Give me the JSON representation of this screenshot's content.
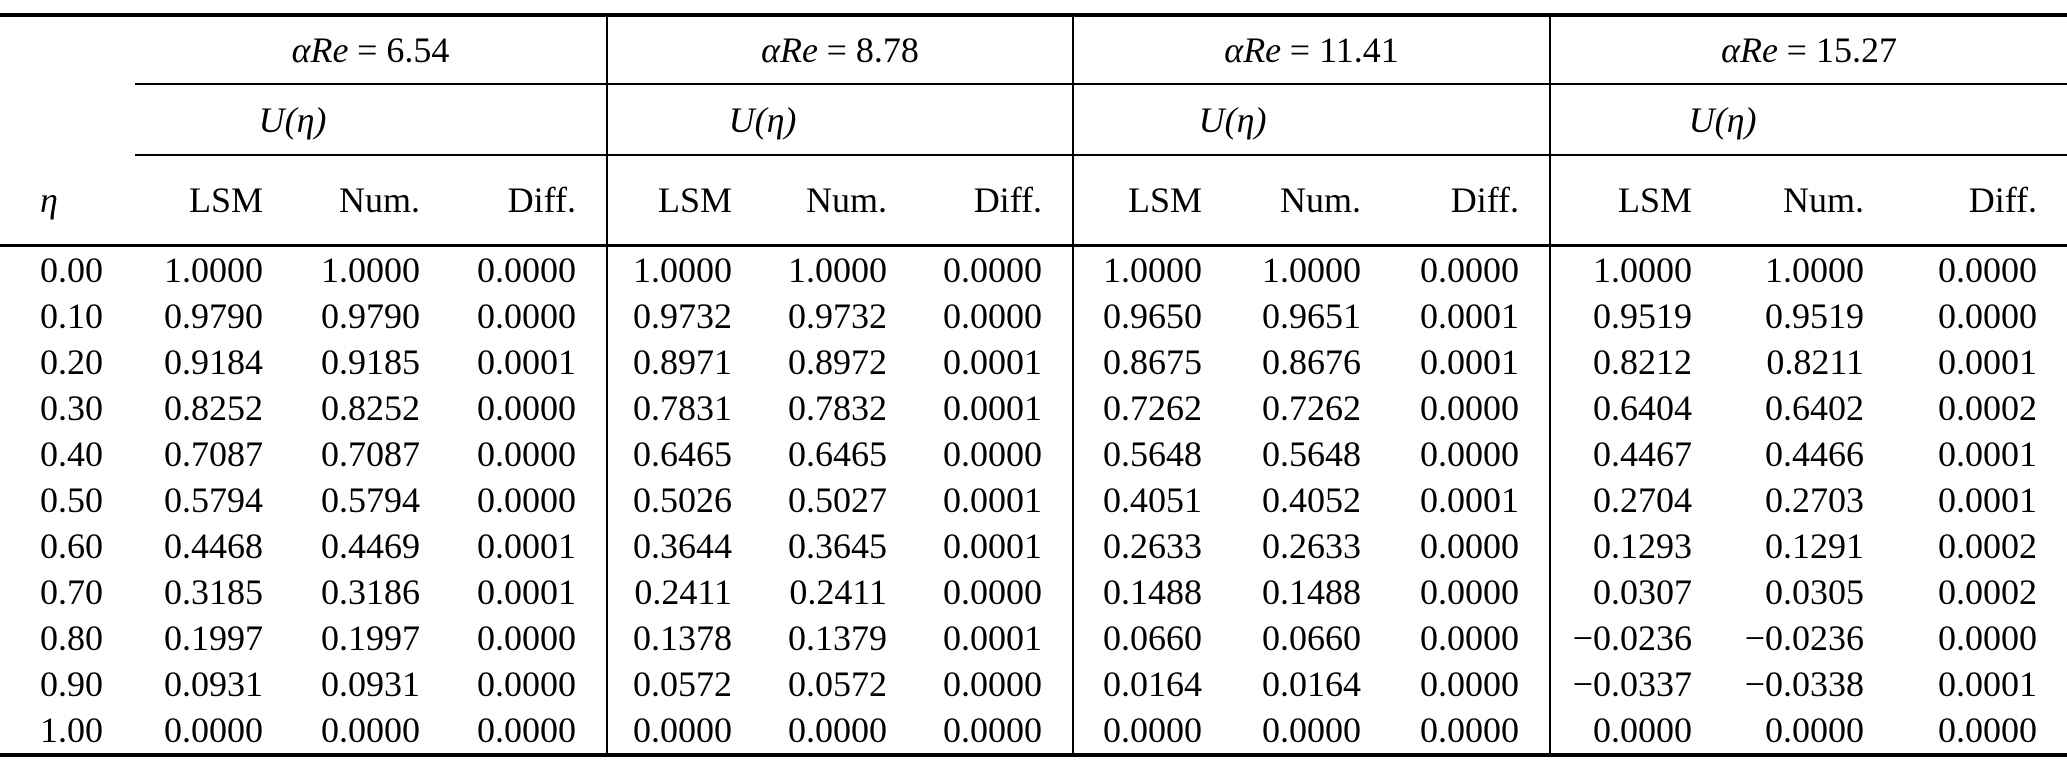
{
  "table": {
    "eta_symbol": "η",
    "u_label": "U(η)",
    "sub_headers": [
      "LSM",
      "Num.",
      "Diff."
    ],
    "eta_values": [
      "0.00",
      "0.10",
      "0.20",
      "0.30",
      "0.40",
      "0.50",
      "0.60",
      "0.70",
      "0.80",
      "0.90",
      "1.00"
    ],
    "groups": [
      {
        "param": "αRe",
        "rel": "= 6.54",
        "LSM": [
          "1.0000",
          "0.9790",
          "0.9184",
          "0.8252",
          "0.7087",
          "0.5794",
          "0.4468",
          "0.3185",
          "0.1997",
          "0.0931",
          "0.0000"
        ],
        "Num": [
          "1.0000",
          "0.9790",
          "0.9185",
          "0.8252",
          "0.7087",
          "0.5794",
          "0.4469",
          "0.3186",
          "0.1997",
          "0.0931",
          "0.0000"
        ],
        "Diff": [
          "0.0000",
          "0.0000",
          "0.0001",
          "0.0000",
          "0.0000",
          "0.0000",
          "0.0001",
          "0.0001",
          "0.0000",
          "0.0000",
          "0.0000"
        ]
      },
      {
        "param": "αRe",
        "rel": "= 8.78",
        "LSM": [
          "1.0000",
          "0.9732",
          "0.8971",
          "0.7831",
          "0.6465",
          "0.5026",
          "0.3644",
          "0.2411",
          "0.1378",
          "0.0572",
          "0.0000"
        ],
        "Num": [
          "1.0000",
          "0.9732",
          "0.8972",
          "0.7832",
          "0.6465",
          "0.5027",
          "0.3645",
          "0.2411",
          "0.1379",
          "0.0572",
          "0.0000"
        ],
        "Diff": [
          "0.0000",
          "0.0000",
          "0.0001",
          "0.0001",
          "0.0000",
          "0.0001",
          "0.0001",
          "0.0000",
          "0.0001",
          "0.0000",
          "0.0000"
        ]
      },
      {
        "param": "αRe",
        "rel": "= 11.41",
        "LSM": [
          "1.0000",
          "0.9650",
          "0.8675",
          "0.7262",
          "0.5648",
          "0.4051",
          "0.2633",
          "0.1488",
          "0.0660",
          "0.0164",
          "0.0000"
        ],
        "Num": [
          "1.0000",
          "0.9651",
          "0.8676",
          "0.7262",
          "0.5648",
          "0.4052",
          "0.2633",
          "0.1488",
          "0.0660",
          "0.0164",
          "0.0000"
        ],
        "Diff": [
          "0.0000",
          "0.0001",
          "0.0001",
          "0.0000",
          "0.0000",
          "0.0001",
          "0.0000",
          "0.0000",
          "0.0000",
          "0.0000",
          "0.0000"
        ]
      },
      {
        "param": "αRe",
        "rel": "= 15.27",
        "LSM": [
          "1.0000",
          "0.9519",
          "0.8212",
          "0.6404",
          "0.4467",
          "0.2704",
          "0.1293",
          "0.0307",
          "−0.0236",
          "−0.0337",
          "0.0000"
        ],
        "Num": [
          "1.0000",
          "0.9519",
          "0.8211",
          "0.6402",
          "0.4466",
          "0.2703",
          "0.1291",
          "0.0305",
          "−0.0236",
          "−0.0338",
          "0.0000"
        ],
        "Diff": [
          "0.0000",
          "0.0000",
          "0.0001",
          "0.0002",
          "0.0001",
          "0.0001",
          "0.0002",
          "0.0002",
          "0.0000",
          "0.0001",
          "0.0000"
        ]
      }
    ]
  }
}
